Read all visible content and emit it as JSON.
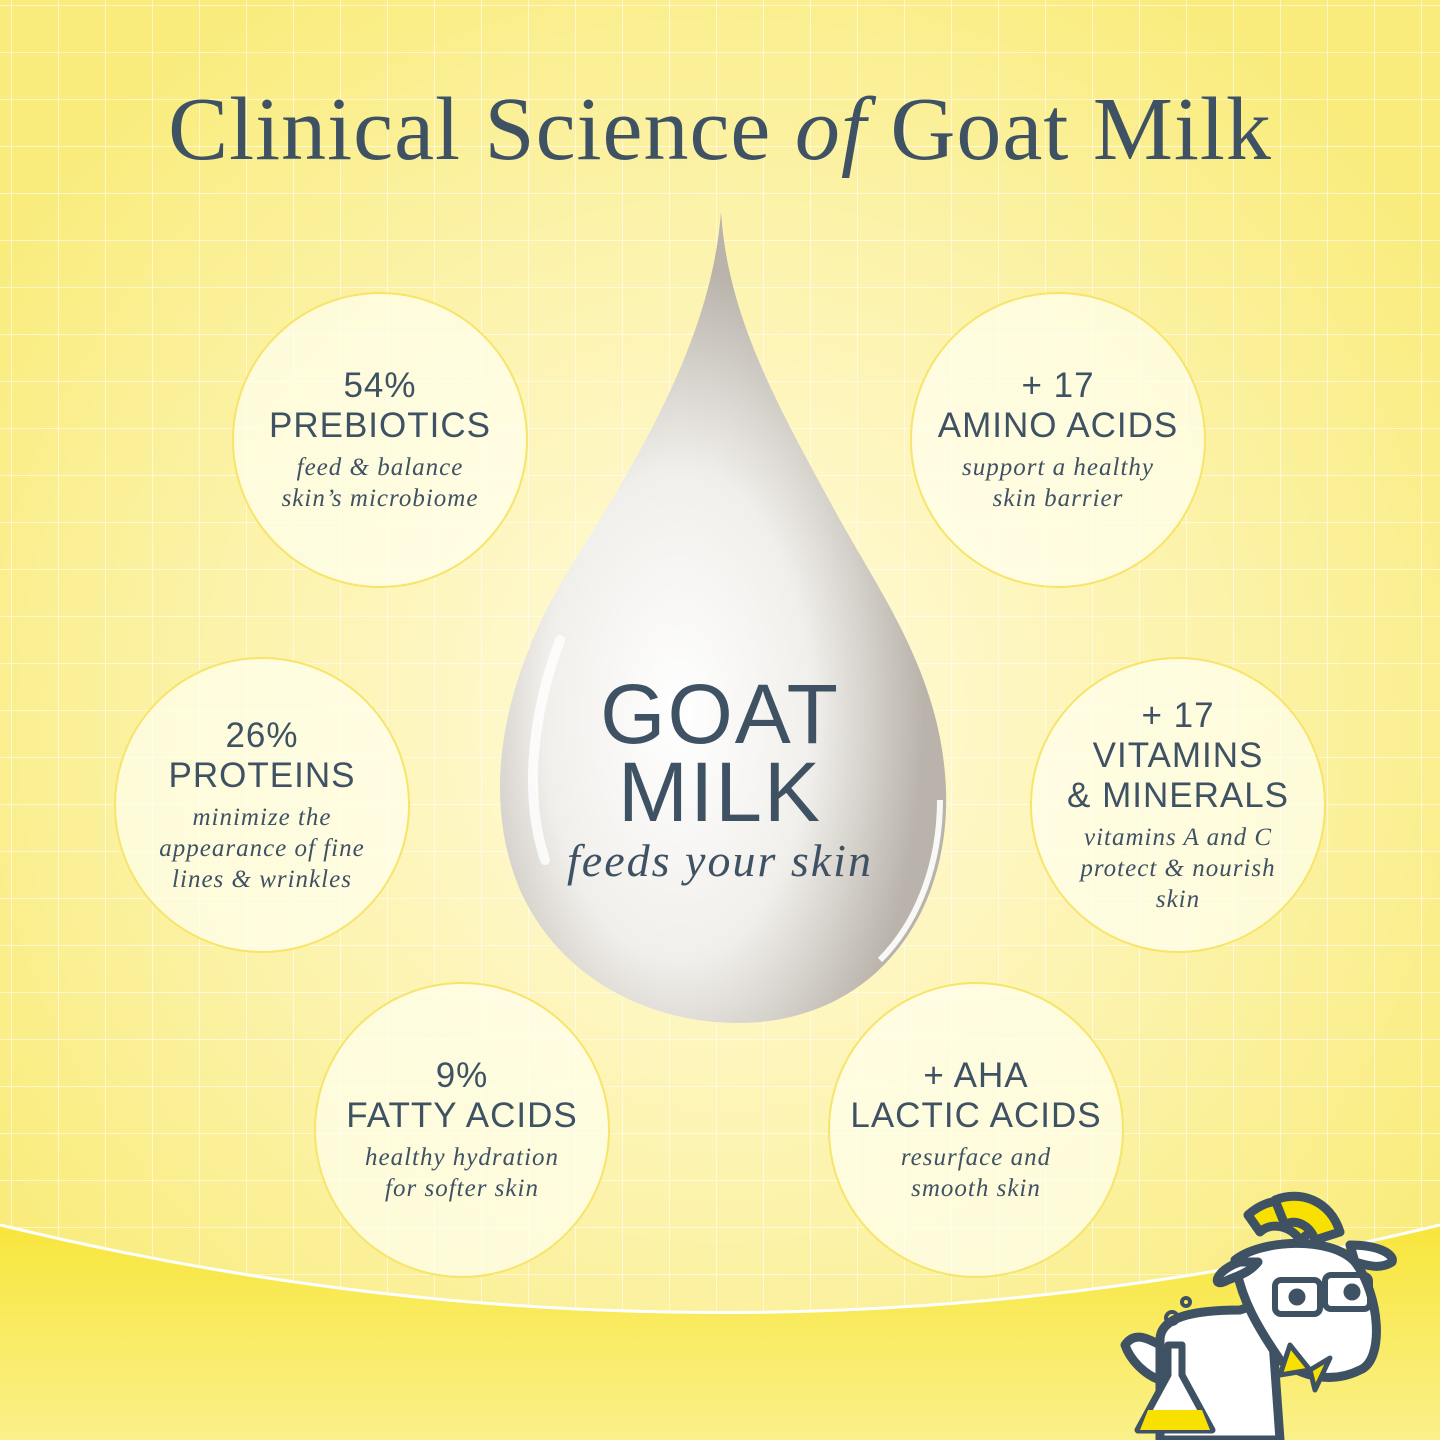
{
  "title": {
    "part1": "Clinical Science ",
    "italic": "of",
    "part2": " Goat Milk"
  },
  "center": {
    "line1": "GOAT",
    "line2": "MILK",
    "tagline": "feeds your skin"
  },
  "colors": {
    "text": "#3f5264",
    "background": "#fbf0a0",
    "accent": "#f8e43a",
    "grid": "#ffffff"
  },
  "mascot": "goat-scientist-with-flask-icon",
  "benefits": [
    {
      "id": "prebiotics",
      "heading": [
        "54%",
        "PREBIOTICS"
      ],
      "description": [
        "feed & balance",
        "skin’s microbiome"
      ]
    },
    {
      "id": "amino-acids",
      "heading": [
        "+ 17",
        "AMINO ACIDS"
      ],
      "description": [
        "support a healthy",
        "skin barrier"
      ]
    },
    {
      "id": "proteins",
      "heading": [
        "26%",
        "PROTEINS"
      ],
      "description": [
        "minimize the",
        "appearance of fine",
        "lines & wrinkles"
      ]
    },
    {
      "id": "vitamins-minerals",
      "heading": [
        "+ 17",
        "VITAMINS",
        "& MINERALS"
      ],
      "description": [
        "vitamins A and C",
        "protect & nourish",
        "skin"
      ]
    },
    {
      "id": "fatty-acids",
      "heading": [
        "9%",
        "FATTY ACIDS"
      ],
      "description": [
        "healthy hydration",
        "for softer skin"
      ]
    },
    {
      "id": "lactic-acids",
      "heading": [
        "+ AHA",
        "LACTIC ACIDS"
      ],
      "description": [
        "resurface and",
        "smooth skin"
      ]
    }
  ]
}
